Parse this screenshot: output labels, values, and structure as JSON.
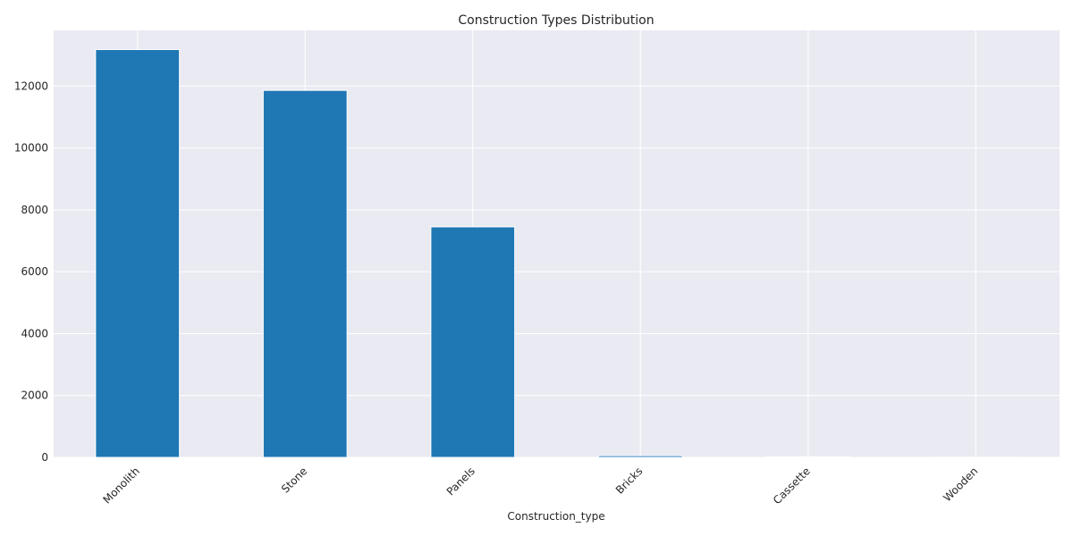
{
  "chart_data": {
    "type": "bar",
    "title": "Construction Types Distribution",
    "xlabel": "Construction_type",
    "ylabel": "",
    "categories": [
      "Monolith",
      "Stone",
      "Panels",
      "Bricks",
      "Cassette",
      "Wooden"
    ],
    "values": [
      13180,
      11860,
      7450,
      55,
      20,
      5
    ],
    "ylim": [
      0,
      13800
    ],
    "yticks": [
      0,
      2000,
      4000,
      6000,
      8000,
      10000,
      12000
    ],
    "ytick_labels": [
      "0",
      "2000",
      "4000",
      "6000",
      "8000",
      "10000",
      "12000"
    ],
    "grid": true,
    "bar_color": "#1f77b4",
    "background_color": "#eaeaf2"
  }
}
